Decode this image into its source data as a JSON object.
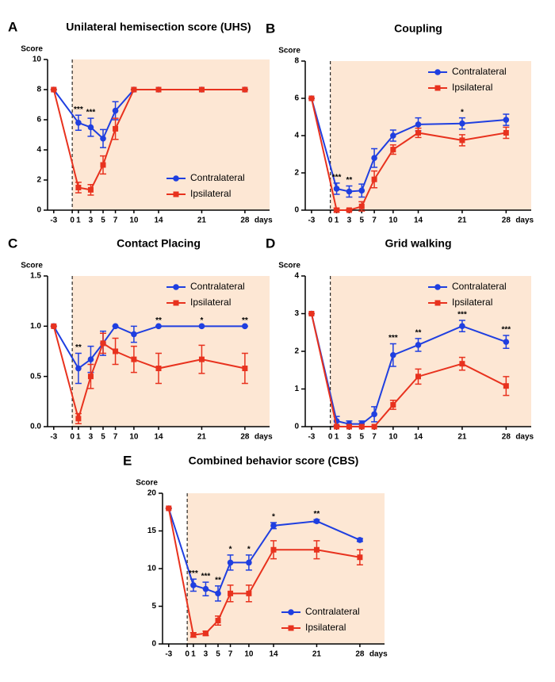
{
  "chart_data": [
    {
      "type": "line",
      "panel": "A",
      "title": "Unilateral hemisection score (UHS)",
      "ylabel": "Score",
      "xlabel": "days",
      "x": [
        -3,
        1,
        3,
        5,
        7,
        10,
        14,
        21,
        28
      ],
      "xlim": [
        -4,
        32
      ],
      "xticks": [
        -3,
        0,
        1,
        3,
        5,
        7,
        10,
        14,
        21,
        28
      ],
      "ylim": [
        0,
        10
      ],
      "yticks": [
        0,
        2,
        4,
        6,
        8,
        10
      ],
      "legend": "lower right",
      "series": [
        {
          "name": "Contralateral",
          "color": "#1f3fe0",
          "marker": "circle",
          "values": [
            8,
            5.8,
            5.5,
            4.75,
            6.6,
            8,
            8,
            8,
            8
          ],
          "errors": [
            0,
            0.5,
            0.6,
            0.6,
            0.6,
            0,
            0,
            0,
            0
          ]
        },
        {
          "name": "Ipsilateral",
          "color": "#e8321e",
          "marker": "square",
          "values": [
            8,
            1.5,
            1.35,
            3.0,
            5.4,
            8,
            8,
            8,
            8
          ],
          "errors": [
            0,
            0.35,
            0.35,
            0.6,
            0.7,
            0,
            0,
            0,
            0
          ]
        }
      ],
      "annotations": [
        {
          "x": 1,
          "label": "***"
        },
        {
          "x": 3,
          "label": "***"
        }
      ]
    },
    {
      "type": "line",
      "panel": "B",
      "title": "Coupling",
      "ylabel": "Score",
      "xlabel": "days",
      "x": [
        -3,
        1,
        3,
        5,
        7,
        10,
        14,
        21,
        28
      ],
      "xlim": [
        -4,
        32
      ],
      "xticks": [
        -3,
        0,
        1,
        3,
        5,
        7,
        10,
        14,
        21,
        28
      ],
      "ylim": [
        0,
        8
      ],
      "yticks": [
        0,
        2,
        4,
        6,
        8
      ],
      "legend": "upper right",
      "series": [
        {
          "name": "Contralateral",
          "color": "#1f3fe0",
          "marker": "circle",
          "values": [
            6,
            1.15,
            1.0,
            1.05,
            2.8,
            4.0,
            4.6,
            4.65,
            4.85
          ],
          "errors": [
            0,
            0.3,
            0.3,
            0.35,
            0.5,
            0.3,
            0.35,
            0.3,
            0.3
          ]
        },
        {
          "name": "Ipsilateral",
          "color": "#e8321e",
          "marker": "square",
          "values": [
            6,
            0,
            0,
            0.2,
            1.65,
            3.25,
            4.15,
            3.75,
            4.15
          ],
          "errors": [
            0,
            0.1,
            0.05,
            0.25,
            0.45,
            0.25,
            0.25,
            0.3,
            0.3
          ]
        }
      ],
      "annotations": [
        {
          "x": 1,
          "label": "***"
        },
        {
          "x": 3,
          "label": "**"
        },
        {
          "x": 21,
          "label": "*"
        }
      ]
    },
    {
      "type": "line",
      "panel": "C",
      "title": "Contact Placing",
      "ylabel": "Score",
      "xlabel": "days",
      "x": [
        -3,
        1,
        3,
        5,
        7,
        10,
        14,
        21,
        28
      ],
      "xlim": [
        -4,
        32
      ],
      "xticks": [
        -3,
        0,
        1,
        3,
        5,
        7,
        10,
        14,
        21,
        28
      ],
      "ylim": [
        0,
        1.5
      ],
      "yticks": [
        {
          "value": 0,
          "label": "0.0"
        },
        0.5,
        {
          "value": 1,
          "label": "1.0"
        },
        1.5
      ],
      "legend": "upper right",
      "series": [
        {
          "name": "Contralateral",
          "color": "#1f3fe0",
          "marker": "circle",
          "values": [
            1.0,
            0.58,
            0.67,
            0.83,
            1.0,
            0.92,
            1.0,
            1.0,
            1.0
          ],
          "errors": [
            0,
            0.15,
            0.13,
            0.12,
            0,
            0.08,
            0,
            0,
            0
          ]
        },
        {
          "name": "Ipsilateral",
          "color": "#e8321e",
          "marker": "square",
          "values": [
            1.0,
            0.08,
            0.5,
            0.83,
            0.75,
            0.67,
            0.58,
            0.67,
            0.58
          ],
          "errors": [
            0,
            0.05,
            0.12,
            0.1,
            0.13,
            0.13,
            0.15,
            0.14,
            0.15
          ]
        }
      ],
      "annotations": [
        {
          "x": 1,
          "label": "**"
        },
        {
          "x": 14,
          "label": "**"
        },
        {
          "x": 21,
          "label": "*"
        },
        {
          "x": 28,
          "label": "**"
        }
      ]
    },
    {
      "type": "line",
      "panel": "D",
      "title": "Grid walking",
      "ylabel": "Score",
      "xlabel": "days",
      "x": [
        -3,
        1,
        3,
        5,
        7,
        10,
        14,
        21,
        28
      ],
      "xlim": [
        -4,
        32
      ],
      "xticks": [
        -3,
        0,
        1,
        3,
        5,
        7,
        10,
        14,
        21,
        28
      ],
      "ylim": [
        0,
        4
      ],
      "yticks": [
        0,
        1,
        2,
        3,
        4
      ],
      "legend": "upper right",
      "series": [
        {
          "name": "Contralateral",
          "color": "#1f3fe0",
          "marker": "circle",
          "values": [
            3,
            0.15,
            0.07,
            0.07,
            0.33,
            1.9,
            2.17,
            2.67,
            2.25
          ],
          "errors": [
            0,
            0.12,
            0.08,
            0.08,
            0.2,
            0.3,
            0.17,
            0.15,
            0.17
          ]
        },
        {
          "name": "Ipsilateral",
          "color": "#e8321e",
          "marker": "square",
          "values": [
            3,
            0,
            0,
            0,
            0,
            0.58,
            1.33,
            1.67,
            1.08
          ],
          "errors": [
            0,
            0,
            0,
            0,
            0,
            0.12,
            0.2,
            0.17,
            0.25
          ]
        }
      ],
      "annotations": [
        {
          "x": 10,
          "label": "***"
        },
        {
          "x": 14,
          "label": "**"
        },
        {
          "x": 21,
          "label": "***"
        },
        {
          "x": 28,
          "label": "***"
        }
      ]
    },
    {
      "type": "line",
      "panel": "E",
      "title": "Combined behavior score (CBS)",
      "ylabel": "Score",
      "xlabel": "days",
      "x": [
        -3,
        1,
        3,
        5,
        7,
        10,
        14,
        21,
        28
      ],
      "xlim": [
        -4,
        32
      ],
      "xticks": [
        -3,
        0,
        1,
        3,
        5,
        7,
        10,
        14,
        21,
        28
      ],
      "ylim": [
        0,
        20
      ],
      "yticks": [
        0,
        5,
        10,
        15,
        20
      ],
      "legend": "lower right",
      "series": [
        {
          "name": "Contralateral",
          "color": "#1f3fe0",
          "marker": "circle",
          "values": [
            18,
            7.8,
            7.3,
            6.7,
            10.8,
            10.8,
            15.7,
            16.3,
            13.8
          ],
          "errors": [
            0,
            0.8,
            0.9,
            1.0,
            1.0,
            1.0,
            0.4,
            0.2,
            0.2
          ]
        },
        {
          "name": "Ipsilateral",
          "color": "#e8321e",
          "marker": "square",
          "values": [
            18,
            1.2,
            1.4,
            3.1,
            6.7,
            6.7,
            12.5,
            12.5,
            11.5
          ],
          "errors": [
            0,
            0.3,
            0.3,
            0.6,
            1.1,
            1.1,
            1.2,
            1.2,
            1.0
          ]
        }
      ],
      "annotations": [
        {
          "x": 1,
          "label": "***"
        },
        {
          "x": 3,
          "label": "***"
        },
        {
          "x": 5,
          "label": "**"
        },
        {
          "x": 7,
          "label": "*"
        },
        {
          "x": 10,
          "label": "*"
        },
        {
          "x": 14,
          "label": "*"
        },
        {
          "x": 21,
          "label": "**"
        }
      ]
    }
  ]
}
